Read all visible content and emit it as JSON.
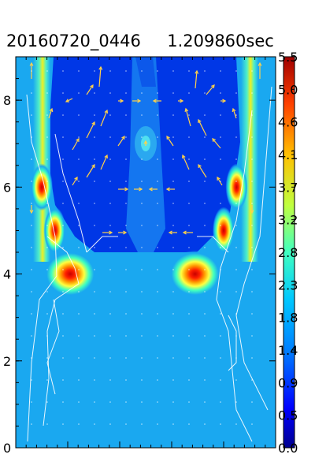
{
  "chart_data": {
    "type": "heatmap",
    "title": "20160720_0446     1.209860sec",
    "xlabel": "",
    "ylabel": "",
    "ylim": [
      0,
      9
    ],
    "y_ticks": [
      "0",
      "2",
      "4",
      "6",
      "8"
    ],
    "colorbar": {
      "labels": [
        "0.0",
        "0.5",
        "0.9",
        "1.4",
        "1.8",
        "2.3",
        "2.8",
        "3.2",
        "3.7",
        "4.1",
        "4.6",
        "5.0",
        "5.5"
      ],
      "range": [
        0.0,
        5.5
      ]
    },
    "features": {
      "hot_spots": [
        {
          "x": 0.21,
          "y": 4.0,
          "value": 5.5
        },
        {
          "x": 0.69,
          "y": 4.0,
          "value": 5.5
        },
        {
          "x": 0.1,
          "y": 6.0,
          "value": 5.0
        },
        {
          "x": 0.85,
          "y": 6.0,
          "value": 5.0
        },
        {
          "x": 0.15,
          "y": 5.0,
          "value": 4.6
        },
        {
          "x": 0.8,
          "y": 5.0,
          "value": 4.6
        }
      ],
      "background_value": 1.6,
      "upper_region_value": 0.3
    }
  }
}
